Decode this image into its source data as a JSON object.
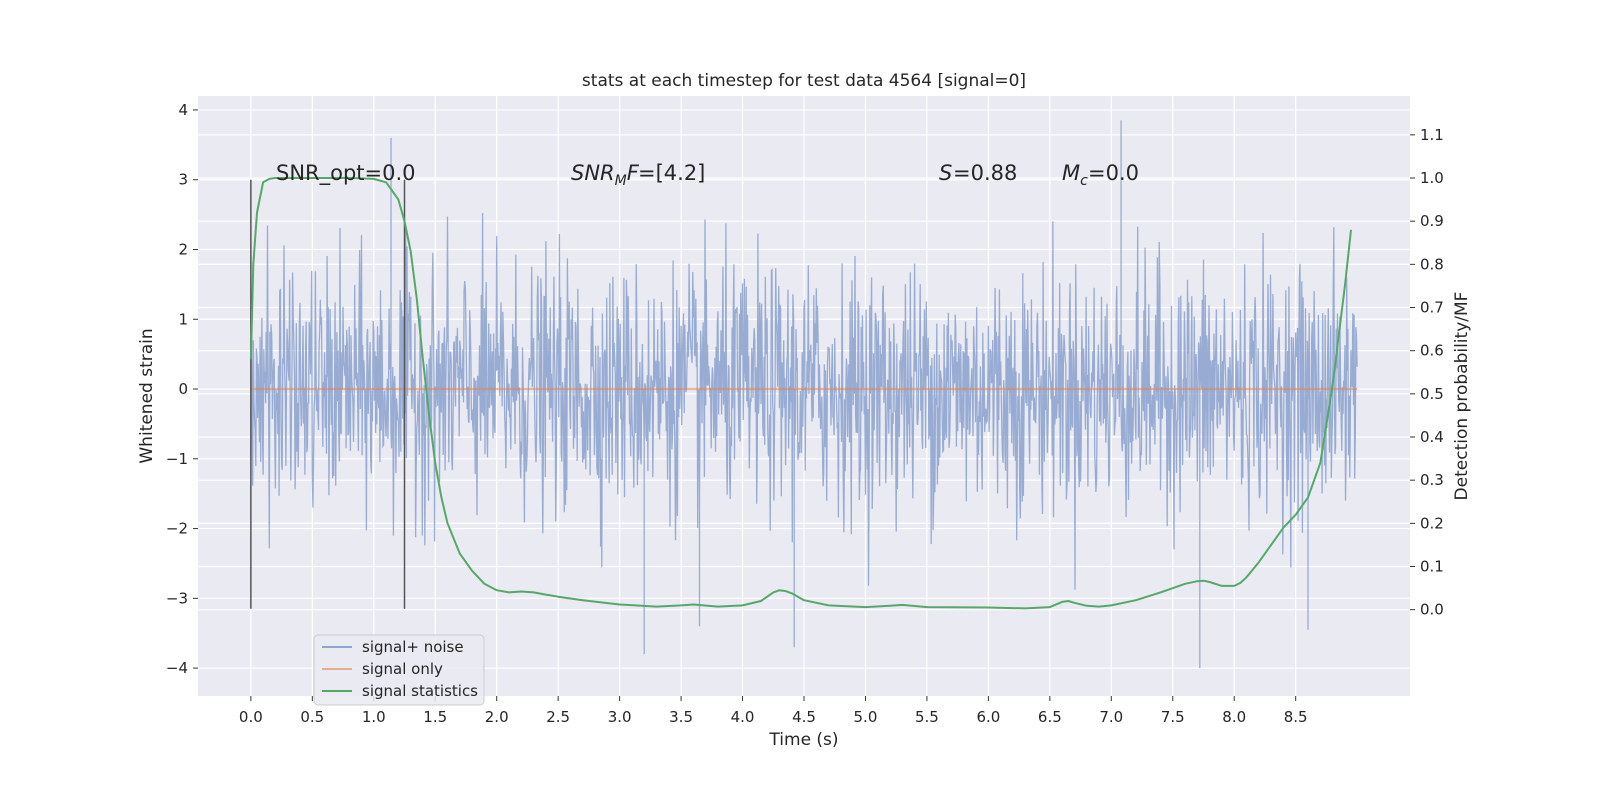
{
  "chart_data": {
    "type": "line",
    "title": "stats at each timestep for test data 4564 [signal=0]",
    "xlabel": "Time (s)",
    "ylabel": "Whitened strain",
    "y2label": "Detection probability/MF",
    "xlim": [
      -0.43,
      9.43
    ],
    "ylim": [
      -4.4,
      4.2
    ],
    "y2lim": [
      -0.2,
      1.19
    ],
    "xticks": [
      "0.0",
      "0.5",
      "1.0",
      "1.5",
      "2.0",
      "2.5",
      "3.0",
      "3.5",
      "4.0",
      "4.5",
      "5.0",
      "5.5",
      "6.0",
      "6.5",
      "7.0",
      "7.5",
      "8.0",
      "8.5"
    ],
    "yticks": [
      "4",
      "3",
      "2",
      "1",
      "0",
      "−1",
      "−2",
      "−3",
      "−4"
    ],
    "y2ticks": [
      "1.1",
      "1.0",
      "0.9",
      "0.8",
      "0.7",
      "0.6",
      "0.5",
      "0.4",
      "0.3",
      "0.2",
      "0.1",
      "0.0"
    ],
    "grid": true,
    "legend_position": "lower-left",
    "colors": {
      "plot_bg": "#eaeaf2",
      "grid": "#ffffff",
      "noise": "#8fa5cf",
      "signal_only": "#dd8452",
      "statistics": "#55a868",
      "marker": "#555555"
    },
    "annotations": {
      "snr_opt": "SNR_opt=0.0",
      "snr_mf": "=[4.2]",
      "s": "=0.88",
      "mc": "=0.0"
    },
    "markers_x": [
      0.0,
      1.25
    ],
    "noise": {
      "x_range": [
        0.0,
        9.0
      ],
      "band_approx": [
        -2.0,
        2.0
      ],
      "extremes": [
        [
          1.14,
          3.6
        ],
        [
          7.08,
          3.85
        ],
        [
          7.72,
          -4.0
        ],
        [
          3.2,
          -3.8
        ],
        [
          4.42,
          -3.7
        ],
        [
          8.6,
          -3.45
        ],
        [
          3.65,
          -3.4
        ]
      ]
    },
    "series": [
      {
        "name": "signal+ noise",
        "axis": "left",
        "color": "#8fa5cf"
      },
      {
        "name": "signal only",
        "axis": "left",
        "color": "#dd8452",
        "x": [
          0.0,
          9.0
        ],
        "y": [
          0.0,
          0.0
        ]
      },
      {
        "name": "signal statistics",
        "axis": "right",
        "color": "#55a868",
        "x": [
          0.0,
          0.02,
          0.05,
          0.1,
          0.15,
          0.2,
          0.3,
          0.5,
          0.8,
          1.0,
          1.1,
          1.2,
          1.25,
          1.3,
          1.35,
          1.4,
          1.45,
          1.5,
          1.55,
          1.6,
          1.7,
          1.8,
          1.9,
          2.0,
          2.1,
          2.2,
          2.3,
          2.4,
          2.5,
          2.7,
          3.0,
          3.3,
          3.5,
          3.6,
          3.8,
          4.0,
          4.15,
          4.25,
          4.3,
          4.35,
          4.4,
          4.5,
          4.7,
          5.0,
          5.2,
          5.3,
          5.5,
          6.0,
          6.3,
          6.5,
          6.6,
          6.65,
          6.7,
          6.8,
          6.9,
          7.0,
          7.2,
          7.4,
          7.6,
          7.7,
          7.75,
          7.8,
          7.9,
          8.0,
          8.05,
          8.1,
          8.2,
          8.3,
          8.4,
          8.5,
          8.6,
          8.7,
          8.8,
          8.9,
          8.95
        ],
        "y": [
          0.58,
          0.8,
          0.92,
          0.99,
          0.998,
          1.0,
          1.0,
          1.0,
          1.0,
          0.998,
          0.99,
          0.95,
          0.9,
          0.83,
          0.72,
          0.58,
          0.45,
          0.34,
          0.26,
          0.2,
          0.13,
          0.09,
          0.06,
          0.045,
          0.04,
          0.042,
          0.04,
          0.035,
          0.03,
          0.022,
          0.012,
          0.007,
          0.01,
          0.012,
          0.007,
          0.01,
          0.02,
          0.04,
          0.045,
          0.043,
          0.038,
          0.022,
          0.01,
          0.006,
          0.009,
          0.011,
          0.006,
          0.005,
          0.003,
          0.006,
          0.018,
          0.02,
          0.016,
          0.009,
          0.007,
          0.01,
          0.022,
          0.04,
          0.06,
          0.066,
          0.067,
          0.064,
          0.055,
          0.055,
          0.062,
          0.075,
          0.11,
          0.15,
          0.19,
          0.22,
          0.26,
          0.34,
          0.52,
          0.75,
          0.88
        ]
      }
    ]
  }
}
